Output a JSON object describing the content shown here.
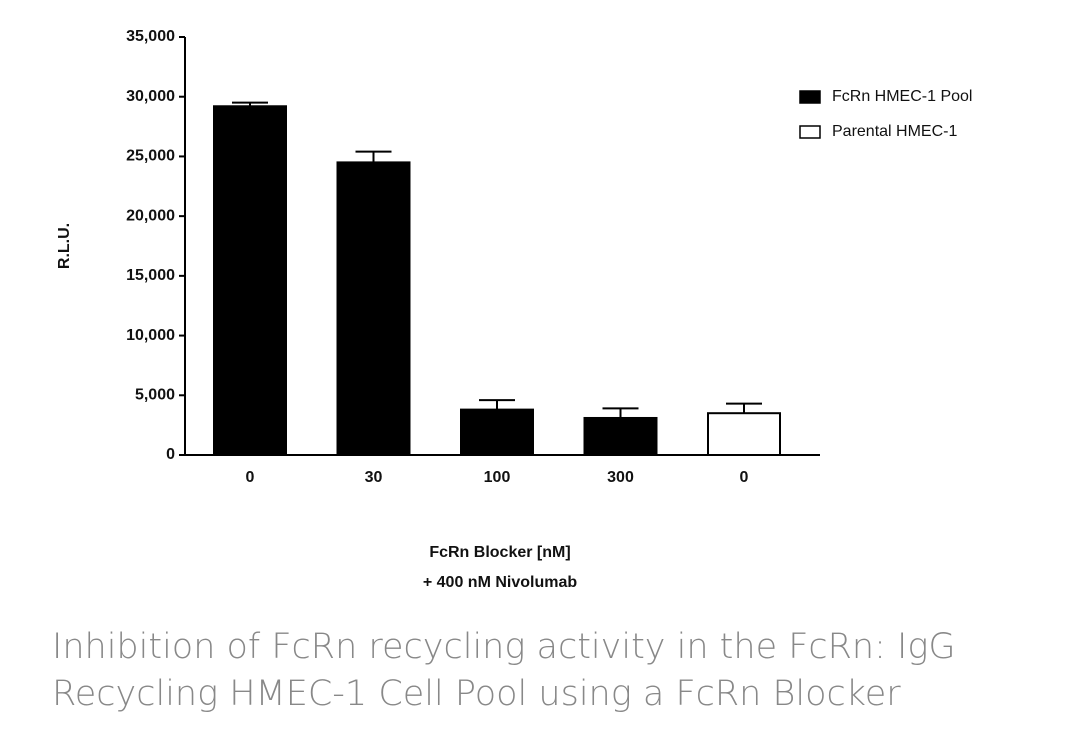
{
  "chart_data": {
    "type": "bar",
    "ylabel": "R.L.U.",
    "xlabel": [
      "FcRn Blocker [nM]",
      "+ 400 nM Nivolumab"
    ],
    "caption": [
      "Inhibition of FcRn recycling activity in the FcRn: IgG",
      "Recycling HMEC-1 Cell Pool using a FcRn Blocker"
    ],
    "categories": [
      "0",
      "30",
      "100",
      "300",
      "0"
    ],
    "series": [
      {
        "name": "FcRn HMEC-1 Pool",
        "color": "#000000",
        "values": [
          29200,
          24500,
          3800,
          3100,
          null
        ],
        "errors": [
          300,
          900,
          800,
          800,
          null
        ]
      },
      {
        "name": "Parental HMEC-1",
        "color": "#ffffff",
        "values": [
          null,
          null,
          null,
          null,
          3500
        ],
        "errors": [
          null,
          null,
          null,
          null,
          800
        ]
      }
    ],
    "ylim": [
      0,
      35000
    ],
    "yticks": [
      0,
      {
        "value": 5000,
        "label": "5,000"
      },
      {
        "value": 10000,
        "label": "10,000"
      },
      {
        "value": 15000,
        "label": "15,000"
      },
      {
        "value": 20000,
        "label": "20,000"
      },
      {
        "value": 25000,
        "label": "25,000"
      },
      {
        "value": 30000,
        "label": "30,000"
      },
      {
        "value": 35000,
        "label": "35,000"
      }
    ],
    "legend": "top-right"
  }
}
